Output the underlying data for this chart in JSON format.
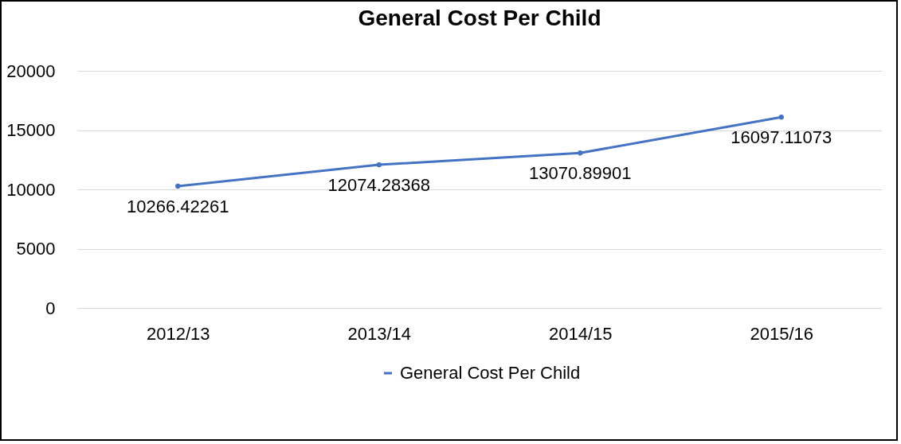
{
  "chart_data": {
    "type": "line",
    "title": "General Cost Per Child",
    "categories": [
      "2012/13",
      "2013/14",
      "2014/15",
      "2015/16"
    ],
    "series": [
      {
        "name": "General Cost Per Child",
        "color": "#4472c4",
        "values": [
          10266.42261,
          12074.28368,
          13070.89901,
          16097.11073
        ]
      }
    ],
    "ylim": [
      0,
      20000
    ],
    "yticks": [
      0,
      5000,
      10000,
      15000,
      20000
    ],
    "grid": "y",
    "legend": "bottom",
    "marker": "circle",
    "data_labels": true
  }
}
